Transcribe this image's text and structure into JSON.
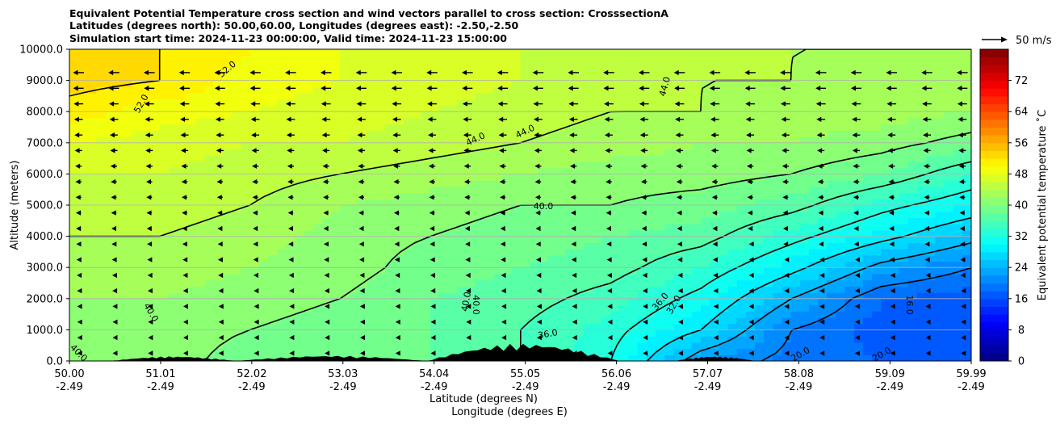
{
  "chart_data": {
    "type": "heatmap",
    "title_lines": [
      "Equivalent Potential Temperature cross section and wind vectors parallel to cross section: CrosssectionA",
      "Latitudes (degrees north): 50.00,60.00, Longitudes (degrees east): -2.50,-2.50",
      "Simulation start time: 2024-11-23 00:00:00, Valid time: 2024-11-23 15:00:00"
    ],
    "xlabel_1": "Latitude (degrees N)",
    "xlabel_2": "Longitude (degrees E)",
    "ylabel": "Altitude (meters)",
    "x_ticks": [
      {
        "lat": "50.00",
        "lon": "-2.49"
      },
      {
        "lat": "51.01",
        "lon": "-2.49"
      },
      {
        "lat": "52.02",
        "lon": "-2.49"
      },
      {
        "lat": "53.03",
        "lon": "-2.49"
      },
      {
        "lat": "54.04",
        "lon": "-2.49"
      },
      {
        "lat": "55.05",
        "lon": "-2.49"
      },
      {
        "lat": "56.06",
        "lon": "-2.49"
      },
      {
        "lat": "57.07",
        "lon": "-2.49"
      },
      {
        "lat": "58.08",
        "lon": "-2.49"
      },
      {
        "lat": "59.09",
        "lon": "-2.49"
      },
      {
        "lat": "59.99",
        "lon": "-2.49"
      }
    ],
    "y_ticks": [
      "0.0",
      "1000.0",
      "2000.0",
      "3000.0",
      "4000.0",
      "5000.0",
      "6000.0",
      "7000.0",
      "8000.0",
      "9000.0",
      "10000.0"
    ],
    "xlim": [
      50.0,
      59.99
    ],
    "ylim": [
      0,
      10000
    ],
    "grid": "horizontal",
    "colorbar": {
      "label": "Equivalent potential temperature ˚C",
      "range": [
        0,
        80
      ],
      "ticks": [
        "0",
        "8",
        "16",
        "24",
        "32",
        "40",
        "48",
        "56",
        "64",
        "72"
      ]
    },
    "quiver_key": "50 m/s",
    "contour_labels": [
      "52.0",
      "52.0",
      "44.0",
      "44.0",
      "44.0",
      "40.0",
      "40.0",
      "40.0",
      "40.0",
      "40.0",
      "36.0",
      "36.0",
      "32.0",
      "16.0",
      "20.0",
      "20.0"
    ],
    "theta_e_field": {
      "lat": [
        50.0,
        51.0,
        52.0,
        53.0,
        54.0,
        55.0,
        56.0,
        57.0,
        58.0,
        59.0,
        60.0
      ],
      "alt": [
        0,
        1000,
        2000,
        3000,
        4000,
        5000,
        6000,
        7000,
        8000,
        9000,
        10000
      ],
      "values": [
        [
          41,
          41,
          39,
          38,
          38,
          36,
          32,
          22,
          19,
          18,
          18
        ],
        [
          41,
          41,
          40,
          39,
          38,
          36,
          33,
          28,
          20,
          17,
          17
        ],
        [
          42,
          42,
          41,
          40,
          38,
          37,
          35,
          31,
          24,
          18,
          17
        ],
        [
          43,
          43,
          42,
          41,
          39,
          38,
          37,
          34,
          29,
          23,
          20
        ],
        [
          44,
          44,
          43,
          41,
          40,
          39,
          38,
          37,
          33,
          29,
          25
        ],
        [
          45,
          45,
          44,
          42,
          41,
          40,
          40,
          39,
          37,
          33,
          30
        ],
        [
          46,
          46,
          45,
          44,
          43,
          42,
          41,
          41,
          40,
          38,
          34
        ],
        [
          48,
          47,
          46,
          46,
          45,
          44,
          43,
          42,
          42,
          41,
          39
        ],
        [
          51,
          49,
          48,
          47,
          46,
          45,
          44,
          44,
          43,
          43,
          42
        ],
        [
          53,
          52,
          49,
          48,
          47,
          46,
          45,
          44,
          44,
          43,
          43
        ],
        [
          53,
          52,
          50,
          48,
          47,
          46,
          45,
          45,
          44,
          44,
          44
        ]
      ]
    },
    "wind_u_along_section_ms": {
      "alt": [
        0,
        1000,
        2000,
        3000,
        4000,
        5000,
        6000,
        7000,
        8000,
        9000,
        10000
      ],
      "values": [
        -3,
        -4,
        -6,
        -8,
        -10,
        -12,
        -14,
        -17,
        -20,
        -24,
        -25
      ]
    },
    "terrain_segments": [
      {
        "lat_start": 50.45,
        "lat_end": 51.85,
        "max_alt": 150
      },
      {
        "lat_start": 51.85,
        "lat_end": 53.95,
        "max_alt": 170
      },
      {
        "lat_start": 53.95,
        "lat_end": 56.1,
        "max_alt": 560
      },
      {
        "lat_start": 56.7,
        "lat_end": 57.6,
        "max_alt": 150
      }
    ]
  }
}
